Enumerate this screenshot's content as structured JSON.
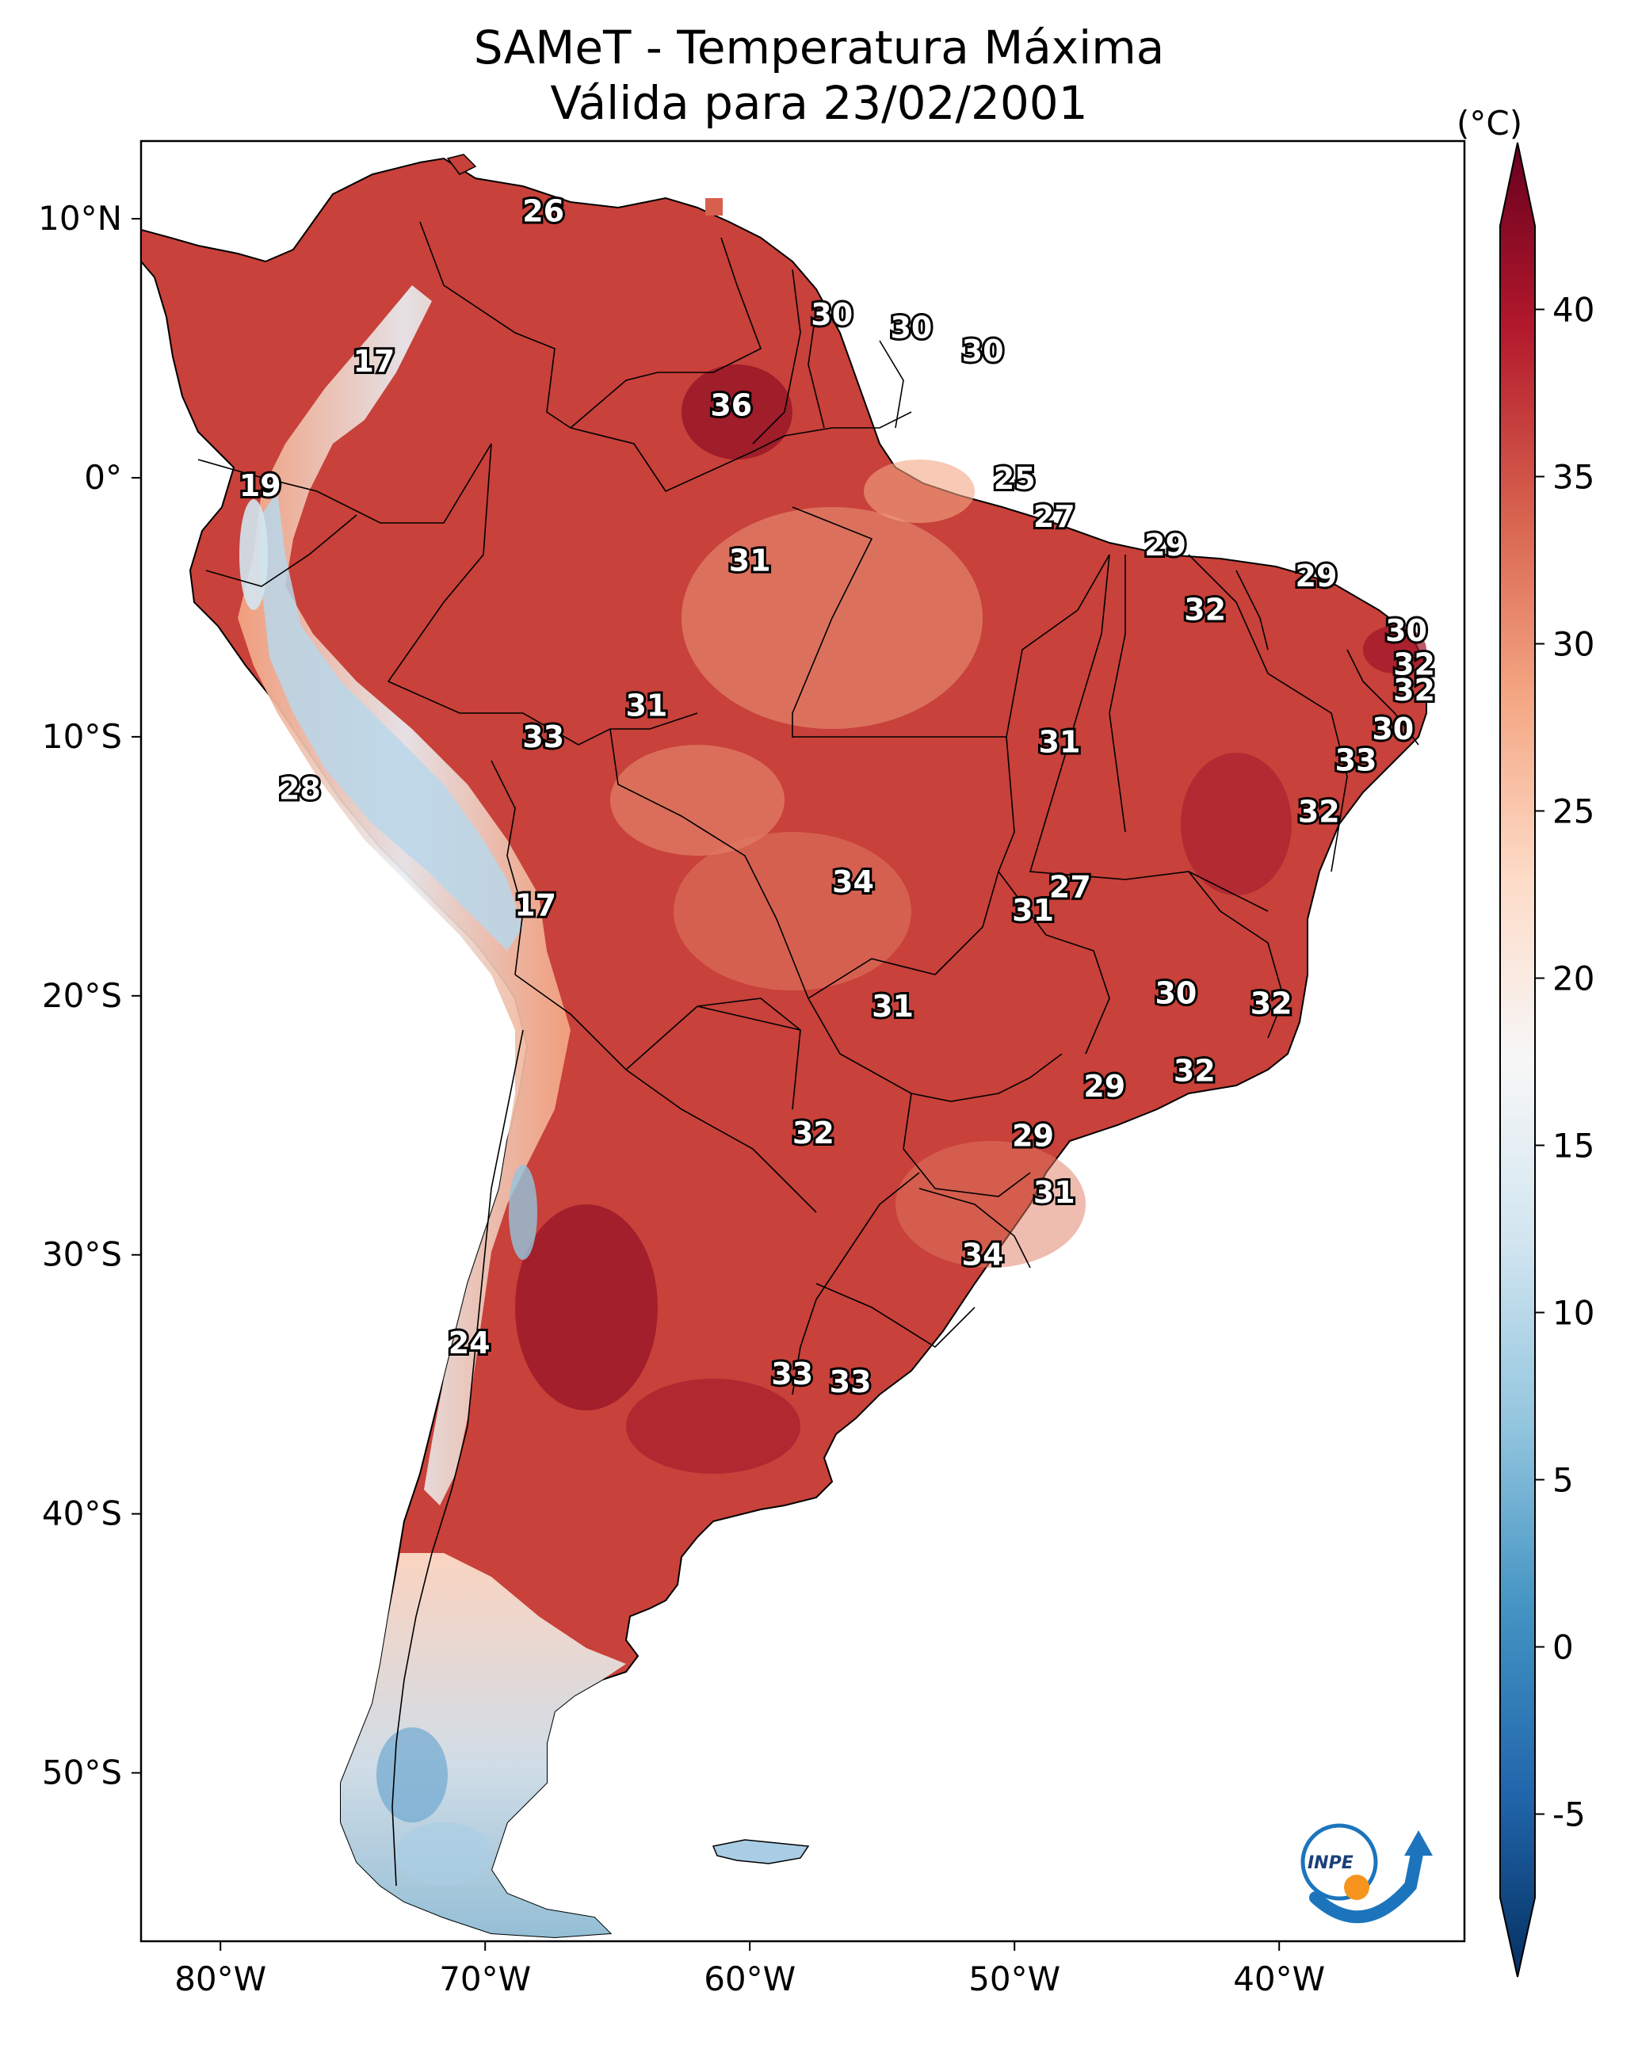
{
  "title": {
    "line1": "SAMeT - Temperatura Máxima",
    "line2": "Válida para 23/02/2001"
  },
  "map": {
    "lon_range": [
      -83,
      -33
    ],
    "lat_range": [
      -56.5,
      13
    ],
    "x_ticks": [
      {
        "lon": -80,
        "label": "80°W"
      },
      {
        "lon": -70,
        "label": "70°W"
      },
      {
        "lon": -60,
        "label": "60°W"
      },
      {
        "lon": -50,
        "label": "50°W"
      },
      {
        "lon": -40,
        "label": "40°W"
      }
    ],
    "y_ticks": [
      {
        "lat": 10,
        "label": "10°N"
      },
      {
        "lat": 0,
        "label": "0°"
      },
      {
        "lat": -10,
        "label": "10°S"
      },
      {
        "lat": -20,
        "label": "20°S"
      },
      {
        "lat": -30,
        "label": "30°S"
      },
      {
        "lat": -40,
        "label": "40°S"
      },
      {
        "lat": -50,
        "label": "50°S"
      }
    ],
    "city_labels": [
      {
        "lon": -67.8,
        "lat": 10.3,
        "value": "26"
      },
      {
        "lon": -56.9,
        "lat": 6.3,
        "value": "30"
      },
      {
        "lon": -53.9,
        "lat": 5.8,
        "value": "30"
      },
      {
        "lon": -51.2,
        "lat": 4.9,
        "value": "30"
      },
      {
        "lon": -74.2,
        "lat": 4.5,
        "value": "17"
      },
      {
        "lon": -60.7,
        "lat": 2.8,
        "value": "36"
      },
      {
        "lon": -78.5,
        "lat": -0.3,
        "value": "19"
      },
      {
        "lon": -50.0,
        "lat": -0.03,
        "value": "25"
      },
      {
        "lon": -48.5,
        "lat": -1.5,
        "value": "27"
      },
      {
        "lon": -60.0,
        "lat": -3.2,
        "value": "31"
      },
      {
        "lon": -44.3,
        "lat": -2.6,
        "value": "29"
      },
      {
        "lon": -38.6,
        "lat": -3.8,
        "value": "29"
      },
      {
        "lon": -42.8,
        "lat": -5.1,
        "value": "32"
      },
      {
        "lon": -35.2,
        "lat": -5.9,
        "value": "30"
      },
      {
        "lon": -34.9,
        "lat": -7.2,
        "value": "32"
      },
      {
        "lon": -34.9,
        "lat": -8.2,
        "value": "32"
      },
      {
        "lon": -63.9,
        "lat": -8.8,
        "value": "31"
      },
      {
        "lon": -67.8,
        "lat": -10.0,
        "value": "33"
      },
      {
        "lon": -48.3,
        "lat": -10.2,
        "value": "31"
      },
      {
        "lon": -35.7,
        "lat": -9.7,
        "value": "30"
      },
      {
        "lon": -37.1,
        "lat": -10.9,
        "value": "33"
      },
      {
        "lon": -38.5,
        "lat": -12.9,
        "value": "32"
      },
      {
        "lon": -77.0,
        "lat": -12.0,
        "value": "28"
      },
      {
        "lon": -56.1,
        "lat": -15.6,
        "value": "34"
      },
      {
        "lon": -47.9,
        "lat": -15.8,
        "value": "27"
      },
      {
        "lon": -49.3,
        "lat": -16.7,
        "value": "31"
      },
      {
        "lon": -68.1,
        "lat": -16.5,
        "value": "17"
      },
      {
        "lon": -43.9,
        "lat": -19.9,
        "value": "30"
      },
      {
        "lon": -40.3,
        "lat": -20.3,
        "value": "32"
      },
      {
        "lon": -54.6,
        "lat": -20.4,
        "value": "31"
      },
      {
        "lon": -43.2,
        "lat": -22.9,
        "value": "32"
      },
      {
        "lon": -46.6,
        "lat": -23.5,
        "value": "29"
      },
      {
        "lon": -57.6,
        "lat": -25.3,
        "value": "32"
      },
      {
        "lon": -49.3,
        "lat": -25.4,
        "value": "29"
      },
      {
        "lon": -48.5,
        "lat": -27.6,
        "value": "31"
      },
      {
        "lon": -51.2,
        "lat": -30.0,
        "value": "34"
      },
      {
        "lon": -70.6,
        "lat": -33.4,
        "value": "24"
      },
      {
        "lon": -58.4,
        "lat": -34.6,
        "value": "33"
      },
      {
        "lon": -56.2,
        "lat": -34.9,
        "value": "33"
      }
    ]
  },
  "colorbar": {
    "unit_label": "(°C)",
    "min": -7.5,
    "max": 42.5,
    "ticks": [
      "-5",
      "0",
      "5",
      "10",
      "15",
      "20",
      "25",
      "30",
      "35",
      "40"
    ],
    "colors": [
      "#053061",
      "#2166ac",
      "#4393c3",
      "#92c5de",
      "#d1e5f0",
      "#f7f7f7",
      "#fddbc7",
      "#f4a582",
      "#d6604d",
      "#b2182b",
      "#67001f"
    ]
  },
  "logo": {
    "text": "INPE"
  }
}
